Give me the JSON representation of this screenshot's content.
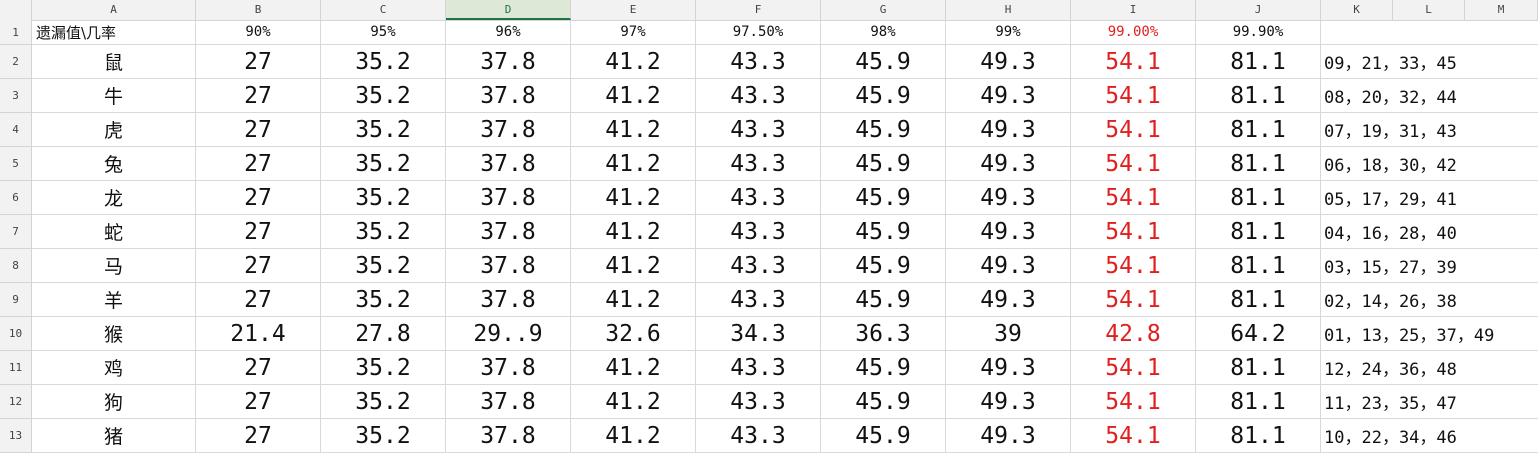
{
  "column_letters": [
    "A",
    "B",
    "C",
    "D",
    "E",
    "F",
    "G",
    "H",
    "I",
    "J",
    "K",
    "L",
    "M"
  ],
  "active_column": "D",
  "header_row": {
    "corner_label": "遗漏值\\几率",
    "percents": [
      "90%",
      "95%",
      "96%",
      "97%",
      "97.50%",
      "98%",
      "99%",
      "99.00%",
      "99.90%"
    ]
  },
  "highlight_column_index": 7,
  "highlight_color": "#e02020",
  "rows": [
    {
      "num": "2",
      "zodiac": "鼠",
      "values": [
        "27",
        "35.2",
        "37.8",
        "41.2",
        "43.3",
        "45.9",
        "49.3",
        "54.1",
        "81.1"
      ],
      "numbers": "09，21，33，45"
    },
    {
      "num": "3",
      "zodiac": "牛",
      "values": [
        "27",
        "35.2",
        "37.8",
        "41.2",
        "43.3",
        "45.9",
        "49.3",
        "54.1",
        "81.1"
      ],
      "numbers": "08，20，32，44"
    },
    {
      "num": "4",
      "zodiac": "虎",
      "values": [
        "27",
        "35.2",
        "37.8",
        "41.2",
        "43.3",
        "45.9",
        "49.3",
        "54.1",
        "81.1"
      ],
      "numbers": "07，19，31，43"
    },
    {
      "num": "5",
      "zodiac": "兔",
      "values": [
        "27",
        "35.2",
        "37.8",
        "41.2",
        "43.3",
        "45.9",
        "49.3",
        "54.1",
        "81.1"
      ],
      "numbers": "06，18，30，42"
    },
    {
      "num": "6",
      "zodiac": "龙",
      "values": [
        "27",
        "35.2",
        "37.8",
        "41.2",
        "43.3",
        "45.9",
        "49.3",
        "54.1",
        "81.1"
      ],
      "numbers": "05，17，29，41"
    },
    {
      "num": "7",
      "zodiac": "蛇",
      "values": [
        "27",
        "35.2",
        "37.8",
        "41.2",
        "43.3",
        "45.9",
        "49.3",
        "54.1",
        "81.1"
      ],
      "numbers": "04，16，28，40"
    },
    {
      "num": "8",
      "zodiac": "马",
      "values": [
        "27",
        "35.2",
        "37.8",
        "41.2",
        "43.3",
        "45.9",
        "49.3",
        "54.1",
        "81.1"
      ],
      "numbers": "03，15，27，39"
    },
    {
      "num": "9",
      "zodiac": "羊",
      "values": [
        "27",
        "35.2",
        "37.8",
        "41.2",
        "43.3",
        "45.9",
        "49.3",
        "54.1",
        "81.1"
      ],
      "numbers": "02，14，26，38"
    },
    {
      "num": "10",
      "zodiac": "猴",
      "values": [
        "21.4",
        "27.8",
        "29..9",
        "32.6",
        "34.3",
        "36.3",
        "39",
        "42.8",
        "64.2"
      ],
      "numbers": "01，13，25，37，49"
    },
    {
      "num": "11",
      "zodiac": "鸡",
      "values": [
        "27",
        "35.2",
        "37.8",
        "41.2",
        "43.3",
        "45.9",
        "49.3",
        "54.1",
        "81.1"
      ],
      "numbers": "12，24，36，48"
    },
    {
      "num": "12",
      "zodiac": "狗",
      "values": [
        "27",
        "35.2",
        "37.8",
        "41.2",
        "43.3",
        "45.9",
        "49.3",
        "54.1",
        "81.1"
      ],
      "numbers": "11，23，35，47"
    },
    {
      "num": "13",
      "zodiac": "猪",
      "values": [
        "27",
        "35.2",
        "37.8",
        "41.2",
        "43.3",
        "45.9",
        "49.3",
        "54.1",
        "81.1"
      ],
      "numbers": "10，22，34，46"
    }
  ],
  "header_row_num": "1"
}
